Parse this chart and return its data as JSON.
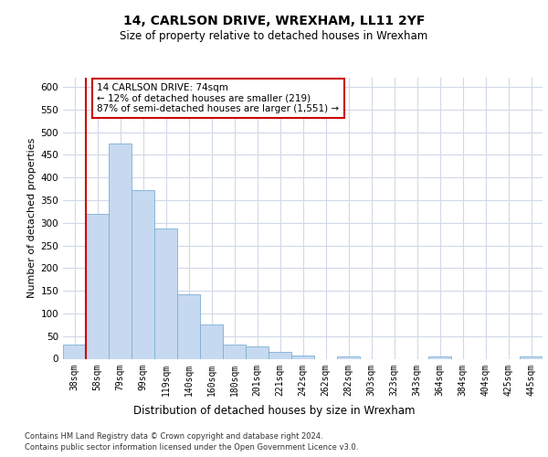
{
  "title1": "14, CARLSON DRIVE, WREXHAM, LL11 2YF",
  "title2": "Size of property relative to detached houses in Wrexham",
  "xlabel": "Distribution of detached houses by size in Wrexham",
  "ylabel": "Number of detached properties",
  "categories": [
    "38sqm",
    "58sqm",
    "79sqm",
    "99sqm",
    "119sqm",
    "140sqm",
    "160sqm",
    "180sqm",
    "201sqm",
    "221sqm",
    "242sqm",
    "262sqm",
    "282sqm",
    "303sqm",
    "323sqm",
    "343sqm",
    "364sqm",
    "384sqm",
    "404sqm",
    "425sqm",
    "445sqm"
  ],
  "values": [
    32,
    320,
    474,
    373,
    287,
    143,
    75,
    31,
    28,
    15,
    8,
    0,
    5,
    0,
    0,
    0,
    5,
    0,
    0,
    0,
    6
  ],
  "bar_color": "#c6d9f0",
  "bar_edge_color": "#7bafd4",
  "ref_line_color": "#cc0000",
  "annotation_text": "14 CARLSON DRIVE: 74sqm\n← 12% of detached houses are smaller (219)\n87% of semi-detached houses are larger (1,551) →",
  "annotation_box_color": "#ffffff",
  "annotation_box_edge": "#cc0000",
  "ylim": [
    0,
    620
  ],
  "yticks": [
    0,
    50,
    100,
    150,
    200,
    250,
    300,
    350,
    400,
    450,
    500,
    550,
    600
  ],
  "footer1": "Contains HM Land Registry data © Crown copyright and database right 2024.",
  "footer2": "Contains public sector information licensed under the Open Government Licence v3.0.",
  "bg_color": "#ffffff",
  "grid_color": "#d0d8e8"
}
